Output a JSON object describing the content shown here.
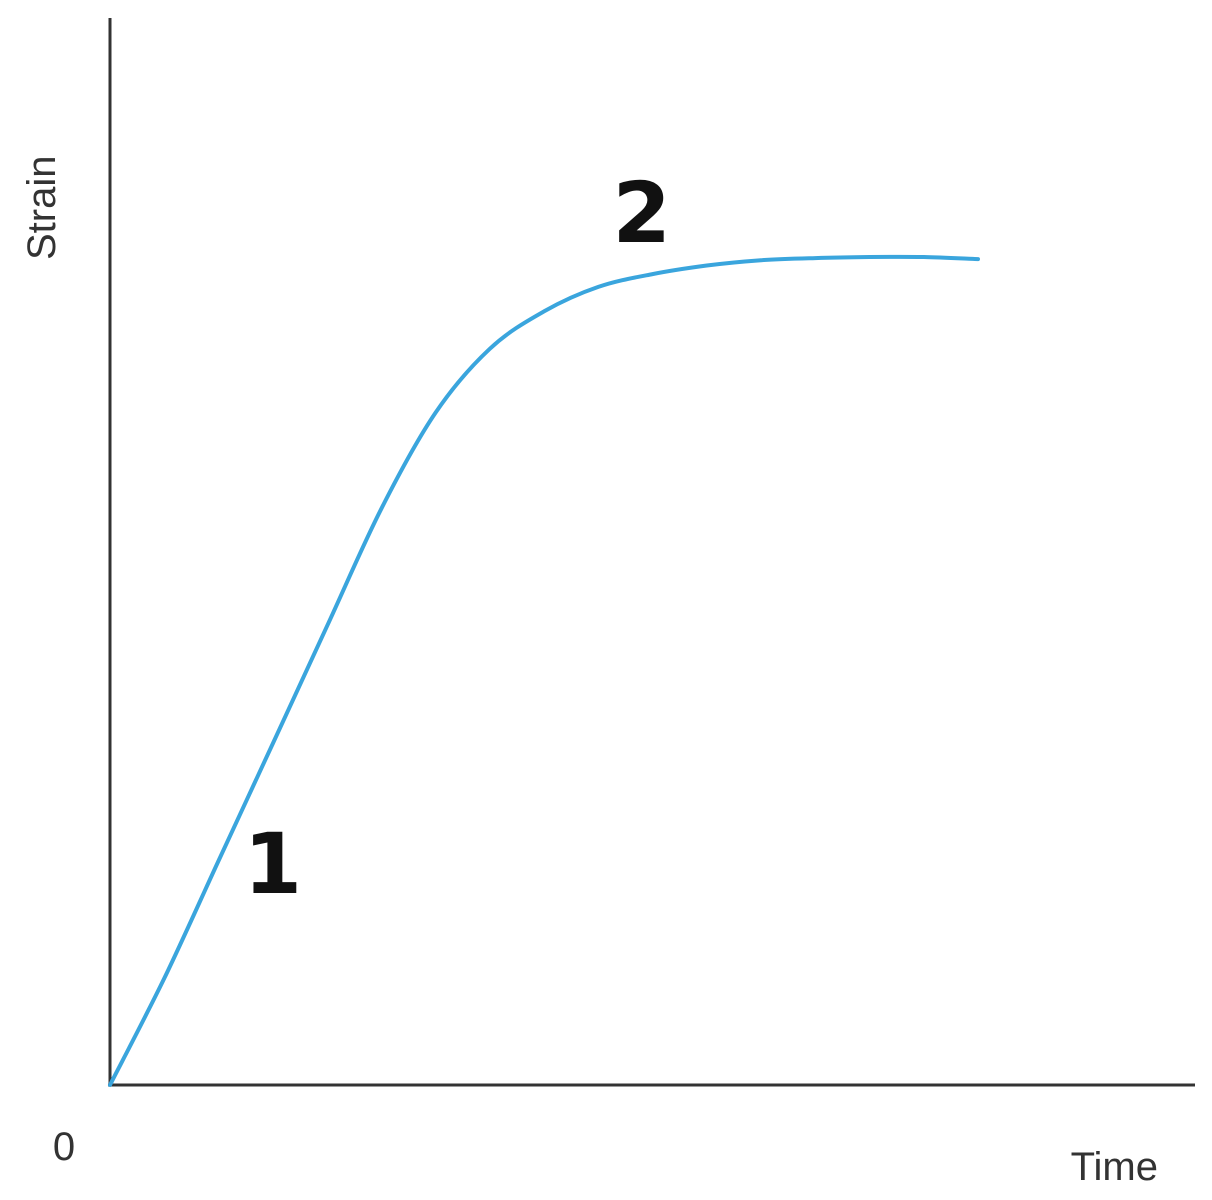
{
  "chart_data": {
    "type": "line",
    "title": "",
    "xlabel": "Time",
    "ylabel": "Strain",
    "origin_label": "0",
    "grid": false,
    "legend": "none",
    "line_color": "#3aa5dd",
    "axis_color": "#333333",
    "xlim": [
      0,
      10
    ],
    "ylim": [
      0,
      10
    ],
    "series": [
      {
        "x": [
          0,
          0.5,
          1.0,
          1.5,
          2.0,
          2.5,
          3.0,
          3.5,
          4.0,
          4.5,
          5.0,
          5.5,
          6.0,
          6.5,
          7.0,
          7.5,
          8.0
        ],
        "values": [
          0,
          1.0,
          2.1,
          3.2,
          4.3,
          5.4,
          6.3,
          6.9,
          7.25,
          7.48,
          7.6,
          7.68,
          7.73,
          7.75,
          7.76,
          7.76,
          7.74
        ]
      }
    ],
    "annotations": [
      {
        "text": "1",
        "x": 1.5,
        "y": 1.8
      },
      {
        "text": "2",
        "x": 4.9,
        "y": 7.9
      }
    ]
  }
}
